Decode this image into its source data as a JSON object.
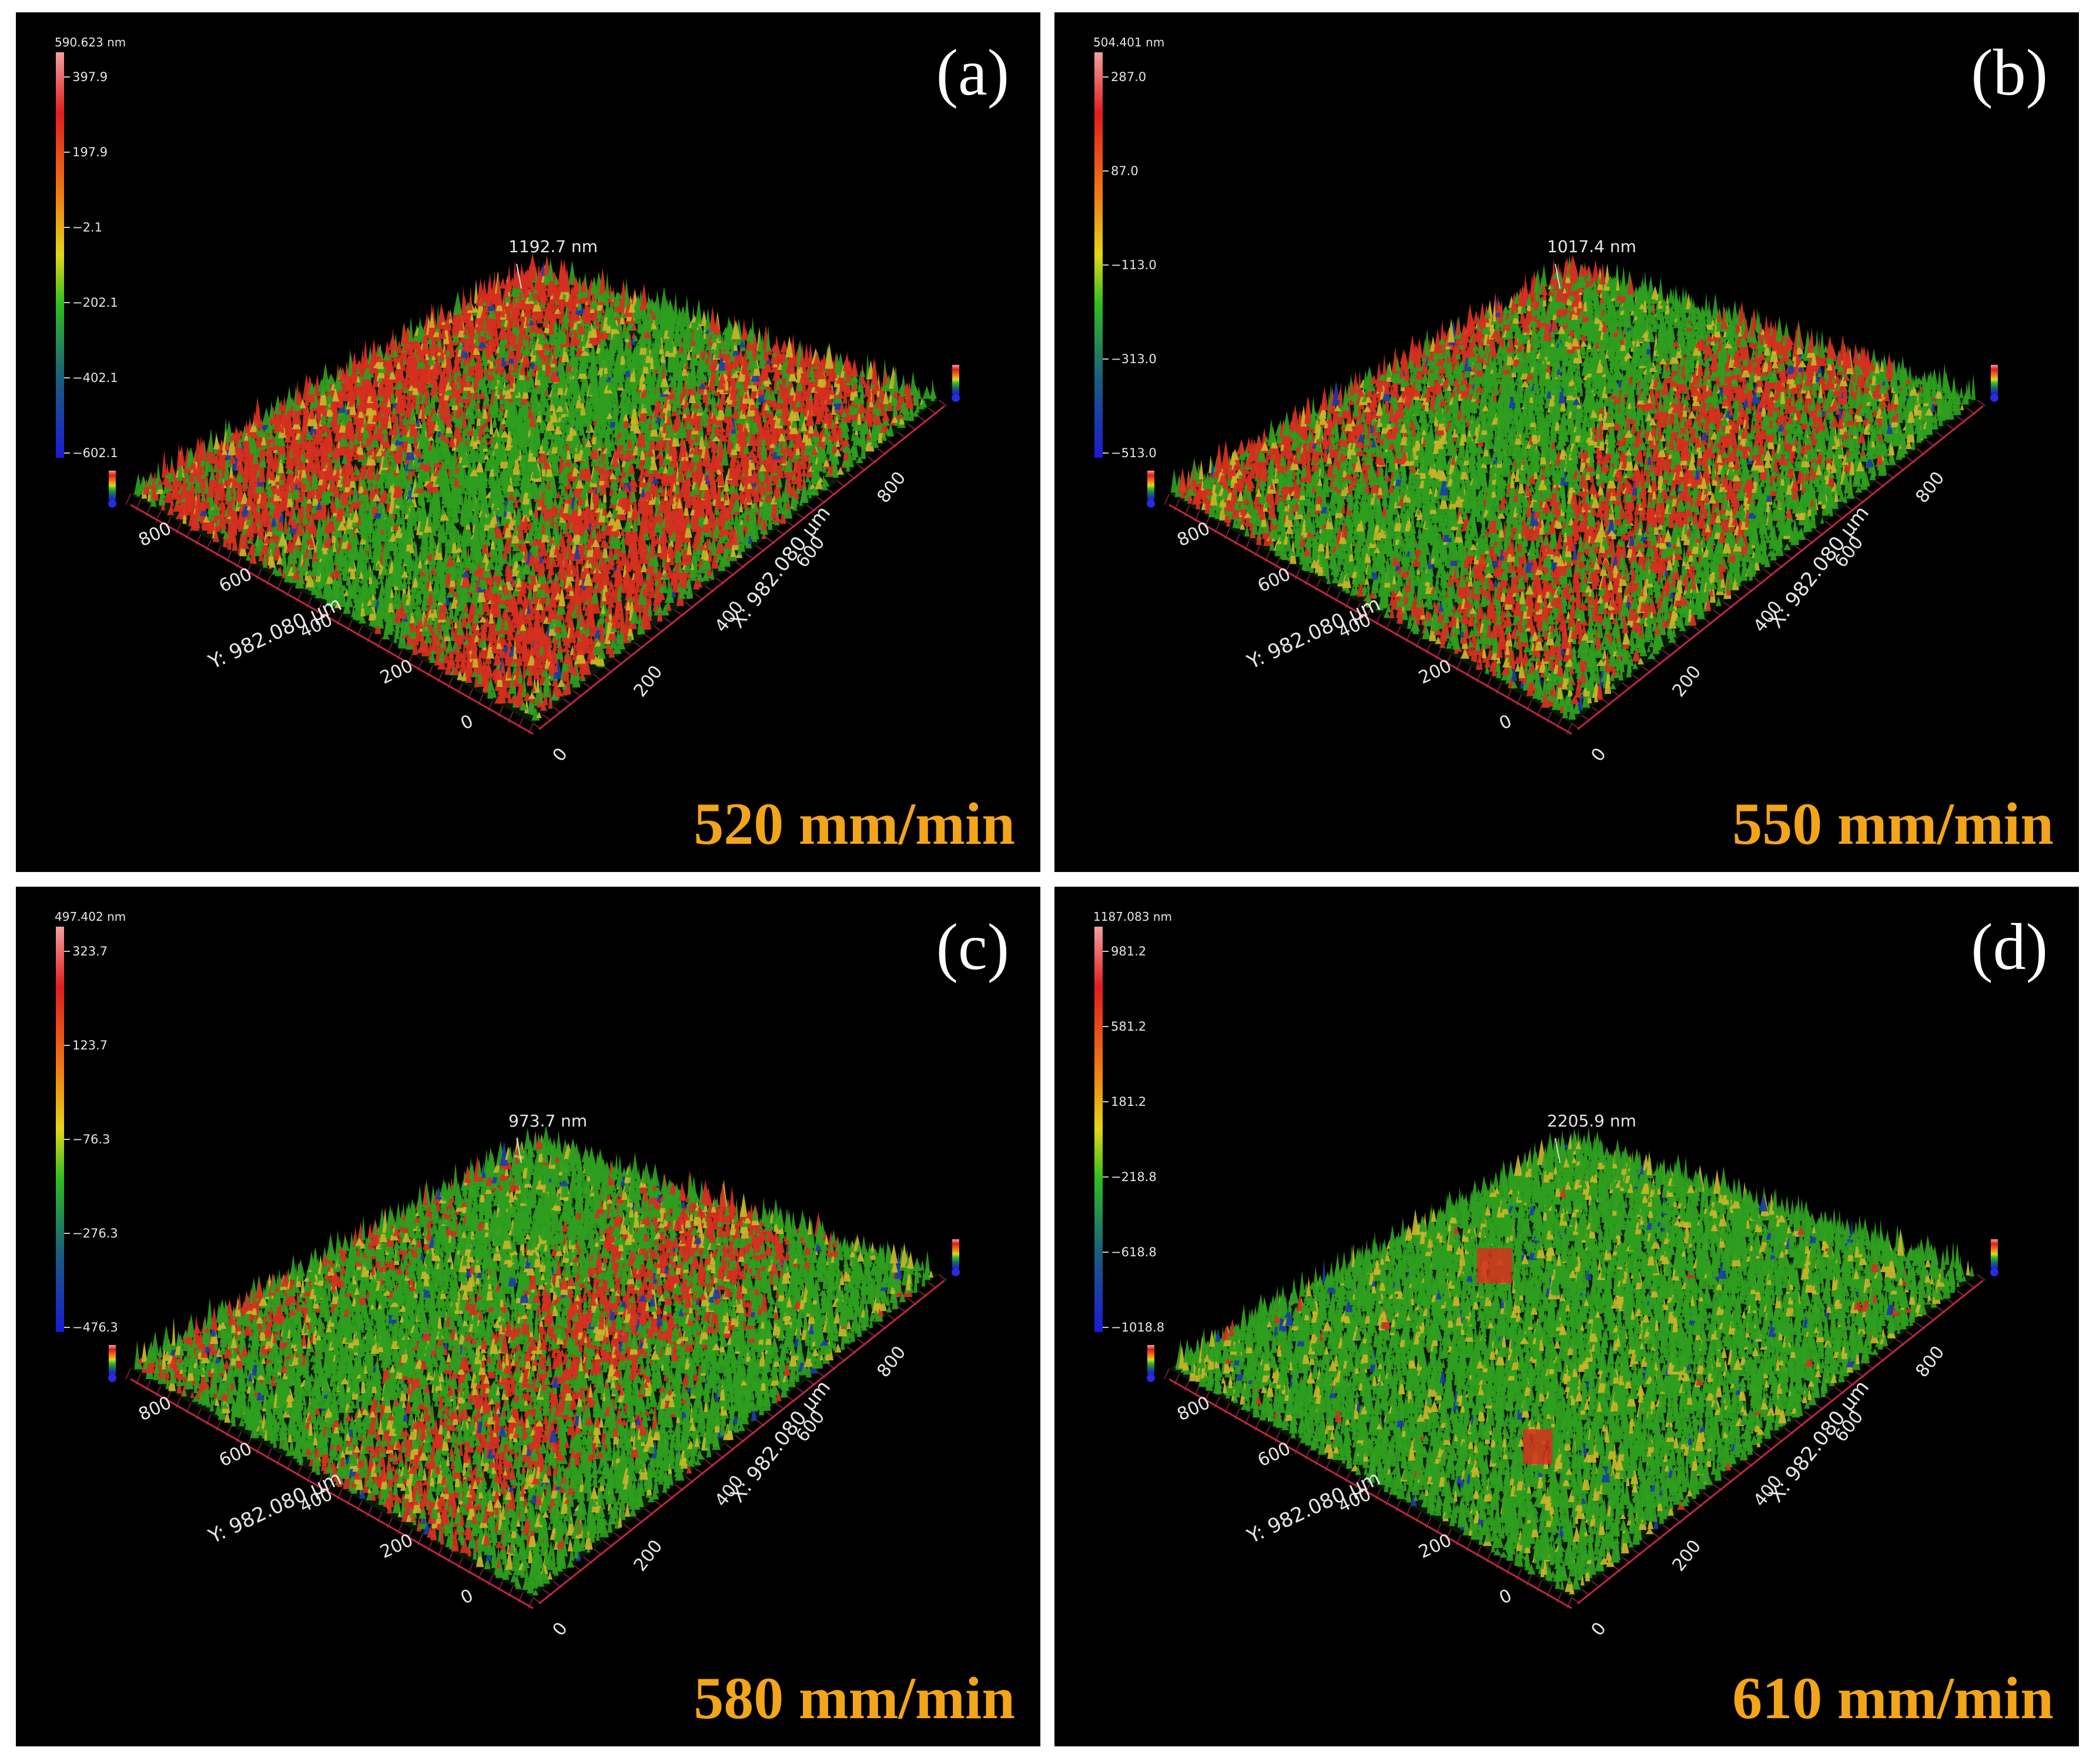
{
  "figure": {
    "panels": [
      {
        "id": "a",
        "letter": "(a)",
        "speed": "520 mm/min",
        "scale_top": "590.623 nm",
        "scale_ticks": [
          "397.9",
          "197.9",
          "−2.1",
          "−202.1",
          "−402.1",
          "−602.1"
        ],
        "peak": "1192.7 nm",
        "y_axis_label": "Y: 982.080 µm",
        "x_axis_label": "X: 982.080 µm",
        "y_ticks": [
          "800",
          "600",
          "400",
          "200",
          "0"
        ],
        "x_ticks": [
          "0",
          "200",
          "400",
          "600",
          "800"
        ],
        "palette": {
          "base": "#2f9e1f",
          "hot": "#d7301f",
          "mid": "#c9b52a",
          "cool": "#1b3fa8"
        },
        "hot_fraction": 0.45
      },
      {
        "id": "b",
        "letter": "(b)",
        "speed": "550 mm/min",
        "scale_top": "504.401 nm",
        "scale_ticks": [
          "287.0",
          "87.0",
          "−113.0",
          "−313.0",
          "−513.0"
        ],
        "peak": "1017.4 nm",
        "y_axis_label": "Y: 982.080 µm",
        "x_axis_label": "X: 982.080 µm",
        "y_ticks": [
          "800",
          "600",
          "400",
          "200",
          "0"
        ],
        "x_ticks": [
          "0",
          "200",
          "400",
          "600",
          "800"
        ],
        "palette": {
          "base": "#2f9e1f",
          "hot": "#d7301f",
          "mid": "#c9b52a",
          "cool": "#1b3fa8"
        },
        "hot_fraction": 0.35
      },
      {
        "id": "c",
        "letter": "(c)",
        "speed": "580 mm/min",
        "scale_top": "497.402 nm",
        "scale_ticks": [
          "323.7",
          "123.7",
          "−76.3",
          "−276.3",
          "−476.3"
        ],
        "peak": "973.7 nm",
        "y_axis_label": "Y: 982.080 µm",
        "x_axis_label": "X: 982.080 µm",
        "y_ticks": [
          "800",
          "600",
          "400",
          "200",
          "0"
        ],
        "x_ticks": [
          "0",
          "200",
          "400",
          "600",
          "800"
        ],
        "palette": {
          "base": "#2f9e1f",
          "hot": "#d7301f",
          "mid": "#c9b52a",
          "cool": "#1b3fa8"
        },
        "hot_fraction": 0.3
      },
      {
        "id": "d",
        "letter": "(d)",
        "speed": "610 mm/min",
        "scale_top": "1187.083 nm",
        "scale_ticks": [
          "981.2",
          "581.2",
          "181.2",
          "−218.8",
          "−618.8",
          "−1018.8"
        ],
        "peak": "2205.9 nm",
        "y_axis_label": "Y: 982.080 µm",
        "x_axis_label": "X: 982.080 µm",
        "y_ticks": [
          "800",
          "600",
          "400",
          "200",
          "0"
        ],
        "x_ticks": [
          "0",
          "200",
          "400",
          "600",
          "800"
        ],
        "palette": {
          "base": "#2f9e1f",
          "hot": "#d7301f",
          "mid": "#c9b52a",
          "cool": "#1b3fa8"
        },
        "hot_fraction": 0.04
      }
    ]
  }
}
